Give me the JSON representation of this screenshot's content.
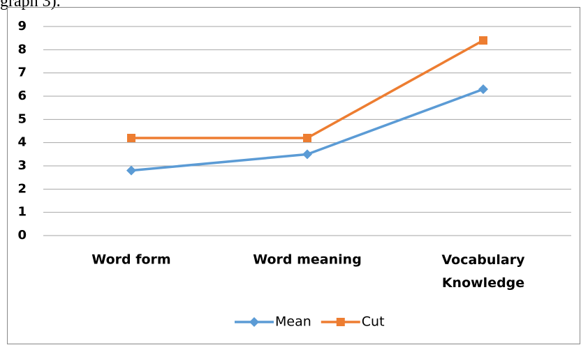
{
  "caption": "graph 3).",
  "chart_data": {
    "type": "line",
    "categories": [
      "Word form",
      "Word meaning",
      "Vocabulary Knowledge"
    ],
    "series": [
      {
        "name": "Mean",
        "color": "#5b9bd5",
        "marker": "diamond",
        "values": [
          2.8,
          3.5,
          6.3
        ]
      },
      {
        "name": "Cut",
        "color": "#ed7d31",
        "marker": "square",
        "values": [
          4.2,
          4.2,
          8.4
        ]
      }
    ],
    "ylim": [
      0,
      9
    ],
    "yticks": [
      0,
      1,
      2,
      3,
      4,
      5,
      6,
      7,
      8,
      9
    ],
    "grid": true,
    "legend": "bottom"
  }
}
